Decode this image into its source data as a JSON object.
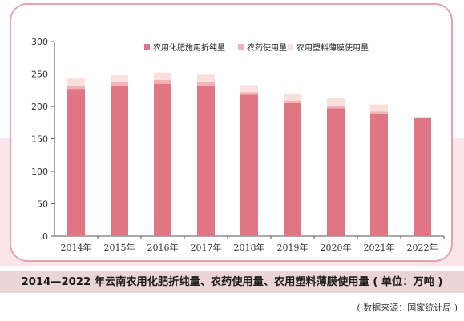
{
  "caption": "2014—2022 年云南农用化肥折纯量、农药使用量、农用塑料薄膜使用量 ( 单位：万吨 )",
  "source": "( 数据来源：国家统计局 )",
  "colors": {
    "fertilizer": "#e07583",
    "pesticide": "#f3b3b6",
    "plastic": "#f9e0dc"
  },
  "chart_data": {
    "type": "bar",
    "stacked": true,
    "categories": [
      "2014年",
      "2015年",
      "2016年",
      "2017年",
      "2018年",
      "2019年",
      "2020年",
      "2021年",
      "2022年"
    ],
    "series": [
      {
        "name": "农用化肥施用折纯量",
        "values": [
          227,
          232,
          235,
          232,
          218,
          205,
          197,
          189,
          183
        ]
      },
      {
        "name": "农药使用量",
        "values": [
          5,
          5,
          6,
          5,
          4,
          4,
          4,
          3,
          0
        ]
      },
      {
        "name": "农用塑料薄膜使用量",
        "values": [
          11,
          11,
          11,
          12,
          11,
          11,
          12,
          11,
          0
        ]
      }
    ],
    "yticks": [
      "0",
      "50",
      "100",
      "150",
      "200",
      "250",
      "300"
    ],
    "ylim": [
      0,
      300
    ],
    "legend": "top-right",
    "grid": false
  }
}
